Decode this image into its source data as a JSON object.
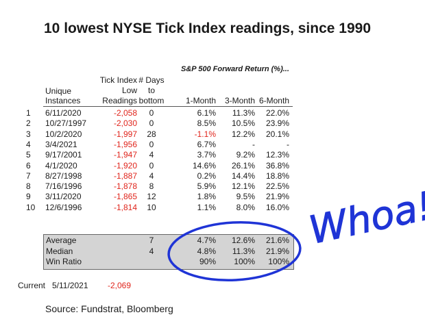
{
  "title": "10 lowest NYSE Tick Index readings, since 1990",
  "headers": {
    "group": "S&P 500 Forward Return (%)...",
    "unique_line1": "Unique",
    "unique_line2": "Instances",
    "tick_line1": "Tick Index",
    "tick_line2": "Low",
    "tick_line3": "Readings",
    "days_line1": "# Days",
    "days_line2": "to",
    "days_line3": "bottom",
    "m1": "1-Month",
    "m3": "3-Month",
    "m6": "6-Month"
  },
  "rows": [
    {
      "n": "1",
      "date": "6/11/2020",
      "tick": "-2,058",
      "days": "0",
      "m1": "6.1%",
      "m3": "11.3%",
      "m6": "22.0%",
      "m1_negative": false
    },
    {
      "n": "2",
      "date": "10/27/1997",
      "tick": "-2,030",
      "days": "0",
      "m1": "8.5%",
      "m3": "10.5%",
      "m6": "23.9%",
      "m1_negative": false
    },
    {
      "n": "3",
      "date": "10/2/2020",
      "tick": "-1,997",
      "days": "28",
      "m1": "-1.1%",
      "m3": "12.2%",
      "m6": "20.1%",
      "m1_negative": true
    },
    {
      "n": "4",
      "date": "3/4/2021",
      "tick": "-1,956",
      "days": "0",
      "m1": "6.7%",
      "m3": "-",
      "m6": "-",
      "m1_negative": false
    },
    {
      "n": "5",
      "date": "9/17/2001",
      "tick": "-1,947",
      "days": "4",
      "m1": "3.7%",
      "m3": "9.2%",
      "m6": "12.3%",
      "m1_negative": false
    },
    {
      "n": "6",
      "date": "4/1/2020",
      "tick": "-1,920",
      "days": "0",
      "m1": "14.6%",
      "m3": "26.1%",
      "m6": "36.8%",
      "m1_negative": false
    },
    {
      "n": "7",
      "date": "8/27/1998",
      "tick": "-1,887",
      "days": "4",
      "m1": "0.2%",
      "m3": "14.4%",
      "m6": "18.8%",
      "m1_negative": false
    },
    {
      "n": "8",
      "date": "7/16/1996",
      "tick": "-1,878",
      "days": "8",
      "m1": "5.9%",
      "m3": "12.1%",
      "m6": "22.5%",
      "m1_negative": false
    },
    {
      "n": "9",
      "date": "3/11/2020",
      "tick": "-1,865",
      "days": "12",
      "m1": "1.8%",
      "m3": "9.5%",
      "m6": "21.9%",
      "m1_negative": false
    },
    {
      "n": "10",
      "date": "12/6/1996",
      "tick": "-1,814",
      "days": "10",
      "m1": "1.1%",
      "m3": "8.0%",
      "m6": "16.0%",
      "m1_negative": false
    }
  ],
  "summary": [
    {
      "label": "Average",
      "days": "7",
      "m1": "4.7%",
      "m3": "12.6%",
      "m6": "21.6%"
    },
    {
      "label": "Median",
      "days": "4",
      "m1": "4.8%",
      "m3": "11.3%",
      "m6": "21.9%"
    },
    {
      "label": "Win Ratio",
      "days": "",
      "m1": "90%",
      "m3": "100%",
      "m6": "100%"
    }
  ],
  "current": {
    "label": "Current",
    "date": "5/11/2021",
    "tick": "-2,069"
  },
  "source": "Source: Fundstrat, Bloomberg",
  "annotation": {
    "text": "Whoa!",
    "color": "#1f34d6"
  },
  "colors": {
    "negative": "#e0241b",
    "summary_fill": "#d4d4d4",
    "ink": "#1f34d6"
  }
}
